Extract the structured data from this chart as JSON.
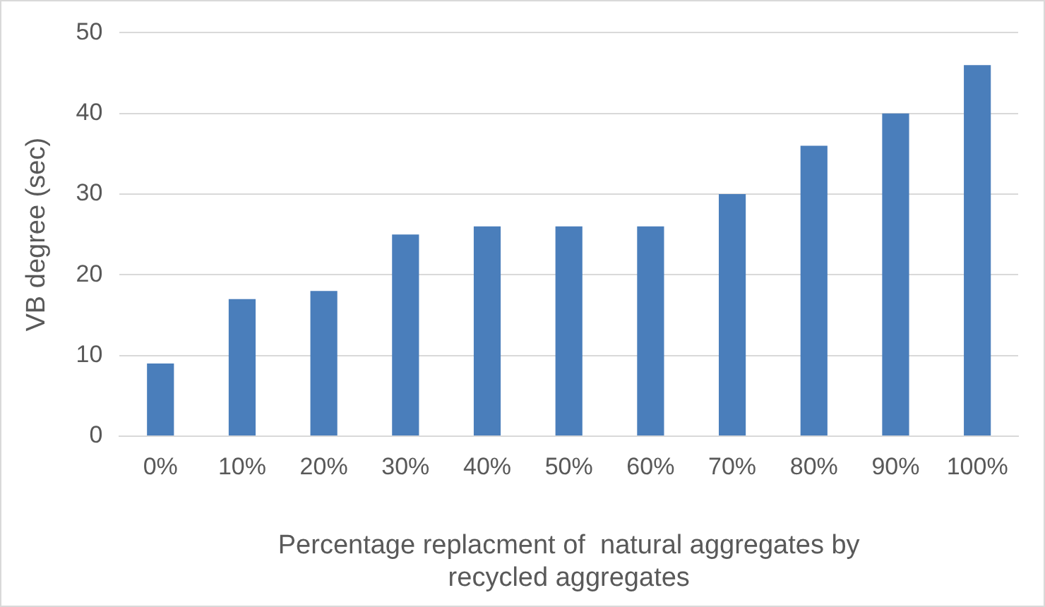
{
  "chart_data": {
    "type": "bar",
    "xlabel": "Percentage replacment of  natural aggregates by\nrecycled aggregates",
    "ylabel": "VB degree (sec)",
    "categories": [
      "0%",
      "10%",
      "20%",
      "30%",
      "40%",
      "50%",
      "60%",
      "70%",
      "80%",
      "90%",
      "100%"
    ],
    "values": [
      9,
      17,
      18,
      25,
      26,
      26,
      26,
      30,
      36,
      40,
      46
    ],
    "color": "#4a7ebb",
    "ylim": [
      0,
      50
    ],
    "yticks": [
      0,
      10,
      20,
      30,
      40,
      50
    ],
    "grid": "y",
    "legend": false
  }
}
